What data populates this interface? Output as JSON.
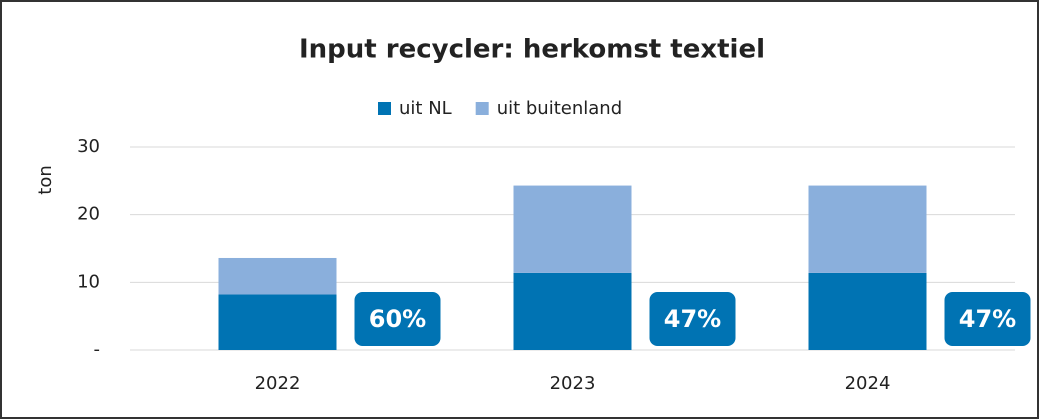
{
  "chart_data": {
    "type": "stacked_bar",
    "title": "Input recycler: herkomst textiel",
    "y_label": "ton",
    "categories": [
      "2022",
      "2023",
      "2024"
    ],
    "series": [
      {
        "name": "uit NL",
        "color": "#0073b3",
        "values": [
          8.2,
          11.4,
          11.4
        ]
      },
      {
        "name": "uit buitenland",
        "color": "#8aafdc",
        "values": [
          5.4,
          12.9,
          12.9
        ]
      }
    ],
    "annotations": [
      "60%",
      "47%",
      "47%"
    ],
    "annotation_color": "#0073b3",
    "ylim": [
      0,
      30
    ],
    "yticks": [
      {
        "value": 0,
        "label": "-"
      },
      10,
      20,
      30
    ],
    "grid": true,
    "legend": "top"
  }
}
